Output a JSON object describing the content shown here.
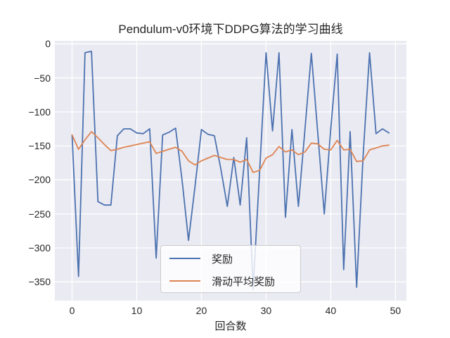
{
  "title": "Pendulum-v0环境下DDPG算法的学习曲线",
  "xlabel": "回合数",
  "legend": {
    "entries": [
      {
        "label": "奖励",
        "color": "#4C72B0"
      },
      {
        "label": "滑动平均奖励",
        "color": "#DD8452"
      }
    ]
  },
  "colors": {
    "reward_line": "#4C72B0",
    "moving_avg_line": "#DD8452",
    "axes_background": "#EAEAF2",
    "gridline": "#FFFFFF",
    "text": "#262626",
    "legend_background": "rgba(255,255,255,0.8)"
  },
  "chart_data": {
    "type": "line",
    "title": "Pendulum-v0环境下DDPG算法的学习曲线",
    "xlabel": "回合数",
    "ylabel": "",
    "grid": true,
    "legend_position": "lower center-left inside axes",
    "xlim": [
      -2.7,
      51.7
    ],
    "ylim": [
      -377.5,
      4.5
    ],
    "x_ticks": [
      0,
      10,
      20,
      30,
      40,
      50
    ],
    "x_tick_labels": [
      "0",
      "10",
      "20",
      "30",
      "40",
      "50"
    ],
    "y_ticks": [
      0,
      -50,
      -100,
      -150,
      -200,
      -250,
      -300,
      -350
    ],
    "y_tick_labels": [
      "0",
      "−50",
      "−100",
      "−150",
      "−200",
      "−250",
      "−300",
      "−350"
    ],
    "x": [
      0,
      1,
      2,
      3,
      4,
      5,
      6,
      7,
      8,
      9,
      10,
      11,
      12,
      13,
      14,
      15,
      16,
      17,
      18,
      19,
      20,
      21,
      22,
      23,
      24,
      25,
      26,
      27,
      28,
      29,
      30,
      31,
      32,
      33,
      34,
      35,
      36,
      37,
      38,
      39,
      40,
      41,
      42,
      43,
      44,
      45,
      46,
      47,
      48,
      49
    ],
    "series": [
      {
        "name": "奖励",
        "color": "#4C72B0",
        "values": [
          -134,
          -342,
          -13,
          -11,
          -232,
          -237,
          -237,
          -135,
          -125,
          -125,
          -131,
          -132,
          -125,
          -315,
          -134,
          -130,
          -124,
          -200,
          -289,
          -210,
          -126,
          -133,
          -135,
          -184,
          -239,
          -167,
          -237,
          -138,
          -361,
          -188,
          -13,
          -128,
          -13,
          -255,
          -126,
          -239,
          -127,
          -14,
          -132,
          -250,
          -125,
          -15,
          -332,
          -129,
          -358,
          -165,
          -13,
          -132,
          -125,
          -131
        ]
      },
      {
        "name": "滑动平均奖励",
        "color": "#DD8452",
        "values": [
          -134,
          -155,
          -141,
          -129,
          -138,
          -148,
          -157,
          -155,
          -152,
          -150,
          -148,
          -146,
          -144,
          -161,
          -158,
          -155,
          -152,
          -158,
          -172,
          -178,
          -172,
          -168,
          -164,
          -167,
          -170,
          -170,
          -174,
          -170,
          -189,
          -186,
          -168,
          -163,
          -151,
          -159,
          -156,
          -163,
          -159,
          -146,
          -147,
          -155,
          -156,
          -142,
          -156,
          -155,
          -173,
          -172,
          -156,
          -153,
          -150,
          -149
        ]
      }
    ]
  }
}
